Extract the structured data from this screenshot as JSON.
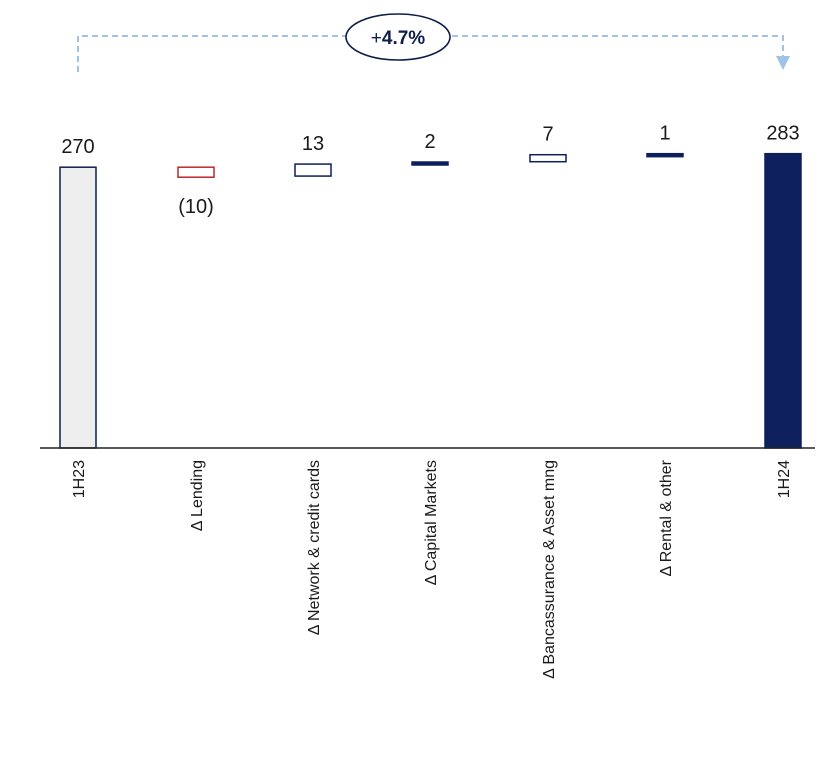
{
  "chart_data": {
    "type": "bar",
    "subtype": "waterfall",
    "categories": [
      "1H23",
      "Δ Lending",
      "Δ Network & credit cards",
      "Δ Capital Markets",
      "Δ Bancassurance & Asset mng",
      "Δ Rental & other",
      "1H24"
    ],
    "values": [
      270,
      -10,
      13,
      2,
      7,
      1,
      283
    ],
    "value_labels": [
      "270",
      "(10)",
      "13",
      "2",
      "7",
      "1",
      "283"
    ],
    "kinds": [
      "total",
      "delta",
      "delta",
      "delta",
      "delta",
      "delta",
      "total"
    ],
    "growth_badge": {
      "sign": "+",
      "value": "4.7%"
    },
    "colors": {
      "start_fill": "#eeeeee",
      "end_fill": "#0d1f5c",
      "positive_stroke": "#0d1f5c",
      "negative_stroke": "#c0272d",
      "outline": "#0f1e4a",
      "bracket": "#9ec3e6",
      "axis": "#222222"
    },
    "grid": false
  }
}
